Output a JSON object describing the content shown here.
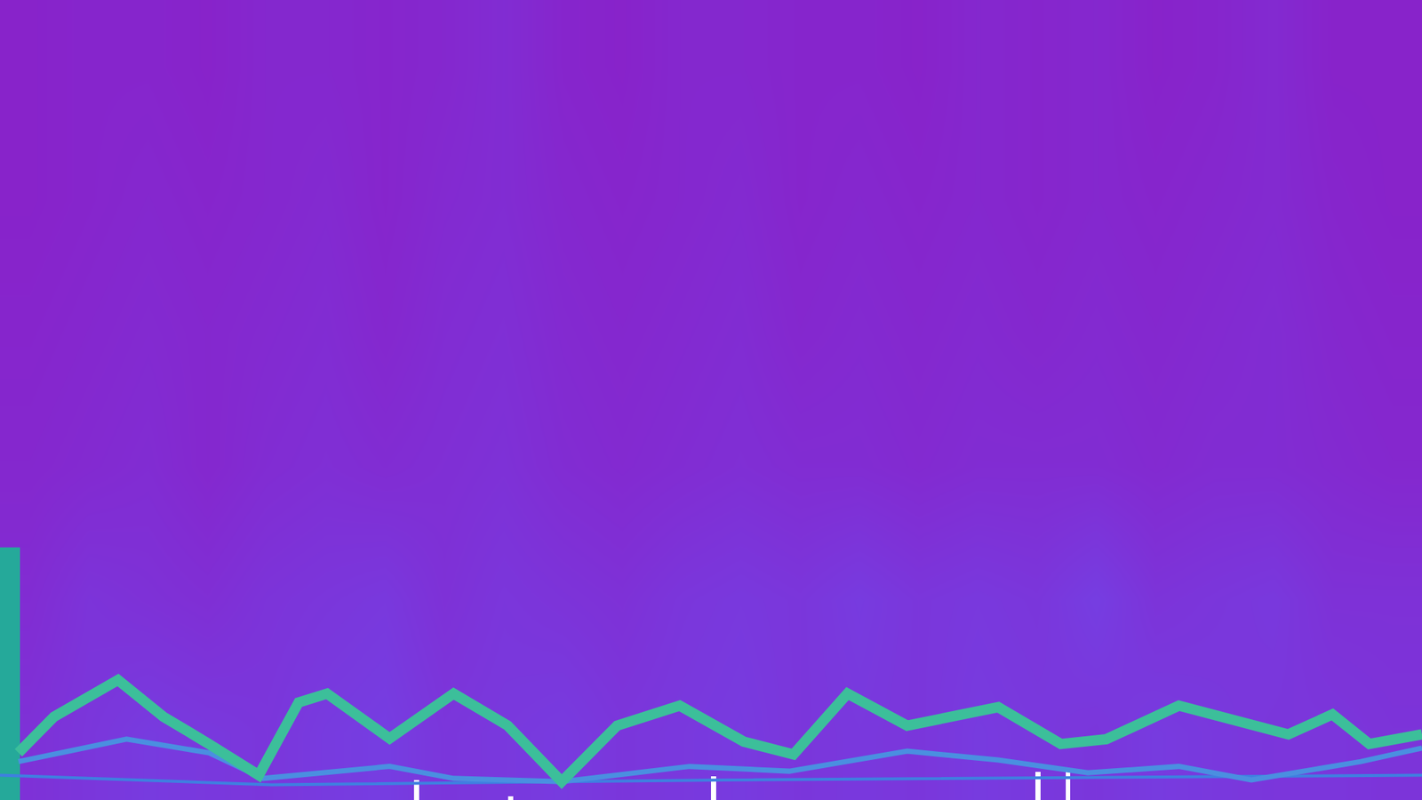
{
  "chart_data": {
    "type": "line",
    "tick_labels": false,
    "grid": false,
    "xlim": [
      0,
      100
    ],
    "ylim": [
      0,
      100
    ],
    "series": [
      {
        "type": "heatmap",
        "zlim": [
          0,
          1
        ],
        "colors": [
          "#8b1ec6",
          "#6a4ef0"
        ],
        "cells": [
          [
            0.4,
            0.5,
            0.6,
            0.55,
            0.5,
            0.6,
            0.65,
            0.5,
            0.55,
            0.6,
            0.5,
            0.55,
            0.6,
            0.5,
            0.55,
            0.5,
            0.6,
            0.55,
            0.5,
            0.6,
            0.55,
            0.5,
            0.5,
            0.45
          ],
          [
            0.3,
            0.45,
            0.4,
            0.35,
            0.45,
            0.5,
            0.55,
            0.4,
            0.5,
            0.45,
            0.4,
            0.5,
            0.55,
            0.5,
            0.6,
            0.5,
            0.55,
            0.5,
            0.65,
            0.45,
            0.5,
            0.55,
            0.4,
            0.4
          ],
          [
            0.2,
            0.25,
            0.3,
            0.2,
            0.3,
            0.35,
            0.3,
            0.35,
            0.4,
            0.3,
            0.25,
            0.3,
            0.35,
            0.3,
            0.3,
            0.25,
            0.3,
            0.3,
            0.3,
            0.25,
            0.3,
            0.3,
            0.25,
            0.2
          ],
          [
            0.15,
            0.2,
            0.25,
            0.2,
            0.25,
            0.3,
            0.2,
            0.3,
            0.35,
            0.25,
            0.2,
            0.25,
            0.3,
            0.2,
            0.25,
            0.2,
            0.25,
            0.2,
            0.25,
            0.2,
            0.25,
            0.3,
            0.2,
            0.15
          ],
          [
            0.1,
            0.15,
            0.2,
            0.15,
            0.2,
            0.25,
            0.15,
            0.25,
            0.3,
            0.2,
            0.15,
            0.2,
            0.25,
            0.15,
            0.2,
            0.15,
            0.2,
            0.15,
            0.2,
            0.15,
            0.2,
            0.25,
            0.15,
            0.1
          ],
          [
            0.1,
            0.15,
            0.15,
            0.1,
            0.2,
            0.2,
            0.15,
            0.2,
            0.3,
            0.15,
            0.1,
            0.2,
            0.2,
            0.15,
            0.15,
            0.1,
            0.2,
            0.15,
            0.2,
            0.1,
            0.15,
            0.25,
            0.1,
            0.1
          ]
        ]
      },
      {
        "type": "bar",
        "color": "#25a99a",
        "x": [
          0.7
        ],
        "values": [
          31.6
        ]
      },
      {
        "type": "bar",
        "color": "#ffffff",
        "x": [
          29.3,
          35.9,
          50.2,
          73.0,
          75.1
        ],
        "values": [
          2.5,
          0.5,
          3,
          3.5,
          4
        ]
      },
      {
        "type": "line",
        "color": "#3f7fe0",
        "x": [
          0,
          19.1,
          51.0,
          100
        ],
        "values": [
          3.1,
          1.9,
          2.5,
          3.1
        ]
      },
      {
        "type": "line",
        "color": "#4a8fe0",
        "x": [
          1.3,
          8.9,
          14.7,
          18.5,
          27.4,
          31.9,
          39.5,
          48.5,
          55.5,
          63.8,
          70.2,
          76.5,
          82.9,
          88.0,
          95.7,
          100
        ],
        "values": [
          4.8,
          7.6,
          5.9,
          2.7,
          4.2,
          2.7,
          2.3,
          4.2,
          3.6,
          6.1,
          5.0,
          3.4,
          4.2,
          2.5,
          4.8,
          6.5
        ]
      },
      {
        "type": "line",
        "color": "#3cbf9a",
        "x": [
          1.3,
          3.8,
          8.3,
          11.5,
          14.7,
          18.2,
          21.0,
          23.0,
          27.4,
          31.9,
          35.7,
          39.5,
          43.4,
          47.8,
          52.3,
          55.8,
          59.6,
          63.8,
          70.2,
          74.6,
          77.8,
          82.9,
          90.6,
          93.7,
          96.3,
          100
        ],
        "values": [
          5.9,
          10.4,
          15.0,
          10.4,
          7.0,
          3.1,
          12.2,
          13.3,
          7.7,
          13.3,
          9.3,
          2.3,
          9.3,
          11.8,
          7.3,
          5.7,
          13.3,
          9.3,
          11.6,
          7.0,
          7.6,
          11.8,
          8.2,
          10.7,
          7.0,
          8.2
        ]
      }
    ]
  }
}
